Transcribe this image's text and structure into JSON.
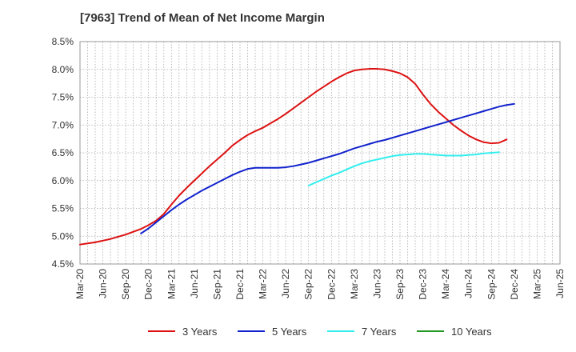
{
  "chart_data": {
    "type": "line",
    "title": "[7963]  Trend of Mean of Net Income Margin",
    "xlabel": "",
    "ylabel": "",
    "x_tick_labels": [
      "Mar-20",
      "Jun-20",
      "Sep-20",
      "Dec-20",
      "Mar-21",
      "Jun-21",
      "Sep-21",
      "Dec-21",
      "Mar-22",
      "Jun-22",
      "Sep-22",
      "Dec-22",
      "Mar-23",
      "Jun-23",
      "Sep-23",
      "Dec-23",
      "Mar-24",
      "Jun-24",
      "Sep-24",
      "Dec-24",
      "Mar-25",
      "Jun-25"
    ],
    "y_tick_labels": [
      "4.5%",
      "5.0%",
      "5.5%",
      "6.0%",
      "6.5%",
      "7.0%",
      "7.5%",
      "8.0%",
      "8.5%"
    ],
    "ylim": [
      4.5,
      8.5
    ],
    "grid": true,
    "legend_position": "bottom",
    "series": [
      {
        "name": "3 Years",
        "color": "#dd1111",
        "values": [
          4.85,
          4.87,
          4.89,
          4.92,
          4.95,
          4.99,
          5.03,
          5.08,
          5.13,
          5.2,
          5.28,
          5.4,
          5.57,
          5.73,
          5.87,
          6.0,
          6.13,
          6.26,
          6.38,
          6.5,
          6.63,
          6.73,
          6.82,
          6.89,
          6.95,
          7.03,
          7.11,
          7.2,
          7.3,
          7.4,
          7.5,
          7.6,
          7.69,
          7.78,
          7.86,
          7.93,
          7.98,
          8.0,
          8.01,
          8.01,
          8.0,
          7.97,
          7.93,
          7.86,
          7.74,
          7.55,
          7.38,
          7.24,
          7.12,
          7.0,
          6.9,
          6.81,
          6.74,
          6.69,
          6.67,
          6.68,
          6.74
        ]
      },
      {
        "name": "5 Years",
        "color": "#1122cc",
        "values": [
          null,
          null,
          null,
          null,
          null,
          null,
          null,
          null,
          5.05,
          5.14,
          5.25,
          5.36,
          5.47,
          5.57,
          5.66,
          5.74,
          5.82,
          5.89,
          5.96,
          6.03,
          6.1,
          6.16,
          6.21,
          6.23,
          6.23,
          6.23,
          6.23,
          6.24,
          6.26,
          6.29,
          6.32,
          6.36,
          6.4,
          6.44,
          6.48,
          6.53,
          6.58,
          6.62,
          6.66,
          6.7,
          6.73,
          6.77,
          6.81,
          6.85,
          6.89,
          6.93,
          6.97,
          7.01,
          7.05,
          7.09,
          7.13,
          7.17,
          7.21,
          7.25,
          7.29,
          7.33,
          7.36,
          7.38
        ]
      },
      {
        "name": "7 Years",
        "color": "#33eeee",
        "values": [
          null,
          null,
          null,
          null,
          null,
          null,
          null,
          null,
          null,
          null,
          null,
          null,
          null,
          null,
          null,
          null,
          null,
          null,
          null,
          null,
          null,
          null,
          null,
          null,
          null,
          null,
          null,
          null,
          null,
          null,
          5.91,
          5.97,
          6.03,
          6.09,
          6.14,
          6.2,
          6.26,
          6.31,
          6.35,
          6.38,
          6.41,
          6.44,
          6.46,
          6.47,
          6.48,
          6.48,
          6.47,
          6.46,
          6.45,
          6.45,
          6.45,
          6.46,
          6.47,
          6.49,
          6.5,
          6.51
        ]
      },
      {
        "name": "10 Years",
        "color": "#229922",
        "values": []
      }
    ]
  }
}
